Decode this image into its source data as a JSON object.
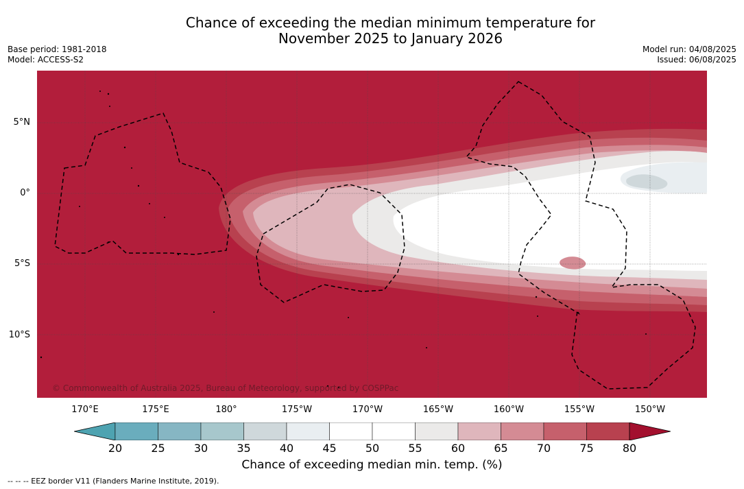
{
  "title": {
    "line1": "Chance of exceeding the median minimum temperature for",
    "line2": "November 2025 to January 2026"
  },
  "meta_left": {
    "base_period": "Base period: 1981-2018",
    "model": "Model: ACCESS-S2"
  },
  "meta_right": {
    "model_run": "Model run: 04/08/2025",
    "issued": "Issued: 06/08/2025"
  },
  "map": {
    "latitude_labels": [
      "5°N",
      "0°",
      "5°S",
      "10°S"
    ],
    "longitude_labels": [
      "170°E",
      "175°E",
      "180°",
      "175°W",
      "170°W",
      "165°W",
      "160°W",
      "155°W",
      "150°W"
    ],
    "copyright": "© Commonwealth of Australia 2025, Bureau of Meteorology, supported by COSPPac",
    "colors": {
      "ocean_high": "#b21e3b",
      "eez_line": "#000000"
    }
  },
  "legend": {
    "title": "Chance of exceeding median min. temp. (%)",
    "ticks": [
      "20",
      "25",
      "30",
      "35",
      "40",
      "45",
      "50",
      "55",
      "60",
      "65",
      "70",
      "75",
      "80"
    ],
    "colors": [
      "#6aadbd",
      "#86b6c3",
      "#a7c7cc",
      "#cfd8db",
      "#e9eef1",
      "#ffffff",
      "#ffffff",
      "#ebeae9",
      "#dfb6bc",
      "#d48b94",
      "#c6606c",
      "#b8414f"
    ],
    "under_color": "#4ea3b1",
    "over_color": "#a3102e"
  },
  "eez_note": "--  --  -- EEZ border V11 (Flanders Marine Institute, 2019)."
}
